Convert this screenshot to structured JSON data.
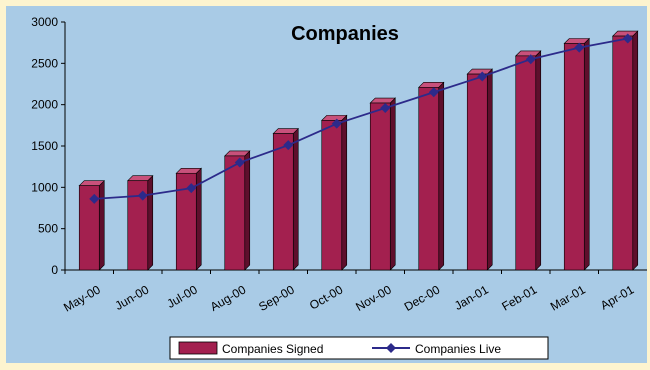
{
  "chart_data": {
    "type": "bar",
    "title": "Companies",
    "xlabel": "",
    "ylabel": "",
    "ylim": [
      0,
      3000
    ],
    "yticks": [
      0,
      500,
      1000,
      1500,
      2000,
      2500,
      3000
    ],
    "grid": false,
    "legend_position": "bottom",
    "categories": [
      "May-00",
      "Jun-00",
      "Jul-00",
      "Aug-00",
      "Sep-00",
      "Oct-00",
      "Nov-00",
      "Dec-00",
      "Jan-01",
      "Feb-01",
      "Mar-01",
      "Apr-01"
    ],
    "series": [
      {
        "name": "Companies Signed",
        "type": "bar",
        "color": "#a3204f",
        "values": [
          1020,
          1080,
          1170,
          1380,
          1650,
          1810,
          2020,
          2210,
          2370,
          2590,
          2740,
          2830
        ]
      },
      {
        "name": "Companies Live",
        "type": "line",
        "color": "#2c2a8a",
        "values": [
          860,
          900,
          990,
          1300,
          1510,
          1770,
          1960,
          2150,
          2340,
          2550,
          2690,
          2800
        ]
      }
    ]
  },
  "colors": {
    "page_background": "#fdf4cf",
    "plot_background": "#a9cbe6",
    "bar_front": "#a3204f",
    "bar_side": "#5e0f2c",
    "bar_top": "#c8517b",
    "line": "#2c2a8a"
  }
}
